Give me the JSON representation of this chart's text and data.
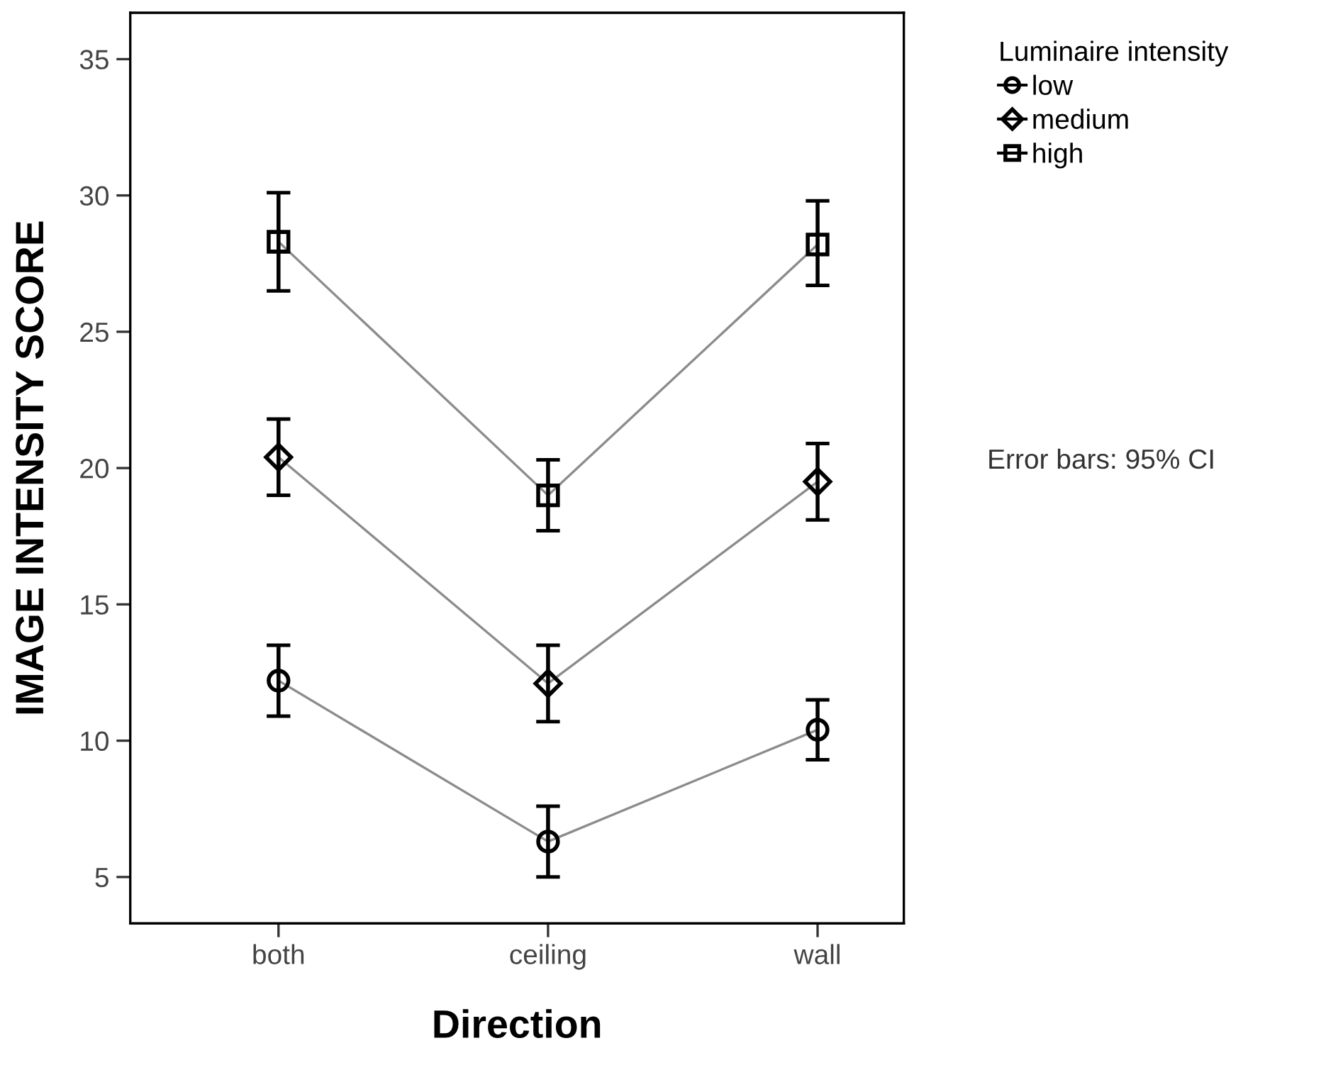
{
  "chart_data": {
    "type": "line",
    "xlabel": "Direction",
    "ylabel": "IMAGE INTENSITY SCORE",
    "legend_title": "Luminaire intensity",
    "categories": [
      "both",
      "ceiling",
      "wall"
    ],
    "series": [
      {
        "name": "low",
        "color": "#000000",
        "marker": "circle",
        "values": [
          12.2,
          6.3,
          10.4
        ],
        "errors": [
          [
            10.9,
            13.5
          ],
          [
            5.0,
            7.6
          ],
          [
            9.3,
            11.5
          ]
        ]
      },
      {
        "name": "medium",
        "color": "#000000",
        "marker": "diamond",
        "values": [
          20.4,
          12.1,
          19.5
        ],
        "errors": [
          [
            19.0,
            21.8
          ],
          [
            10.7,
            13.5
          ],
          [
            18.1,
            20.9
          ]
        ]
      },
      {
        "name": "high",
        "color": "#000000",
        "marker": "square",
        "values": [
          28.3,
          19.0,
          28.2
        ],
        "errors": [
          [
            26.5,
            30.1
          ],
          [
            17.7,
            20.3
          ],
          [
            26.7,
            29.8
          ]
        ]
      }
    ],
    "ylim": [
      3.3,
      36.7
    ],
    "yticks": [
      5,
      10,
      15,
      20,
      25,
      30,
      35
    ],
    "grid": false,
    "legend": "top right",
    "line_style": "solid",
    "annotations": [
      "Error bars: 95% CI"
    ]
  }
}
